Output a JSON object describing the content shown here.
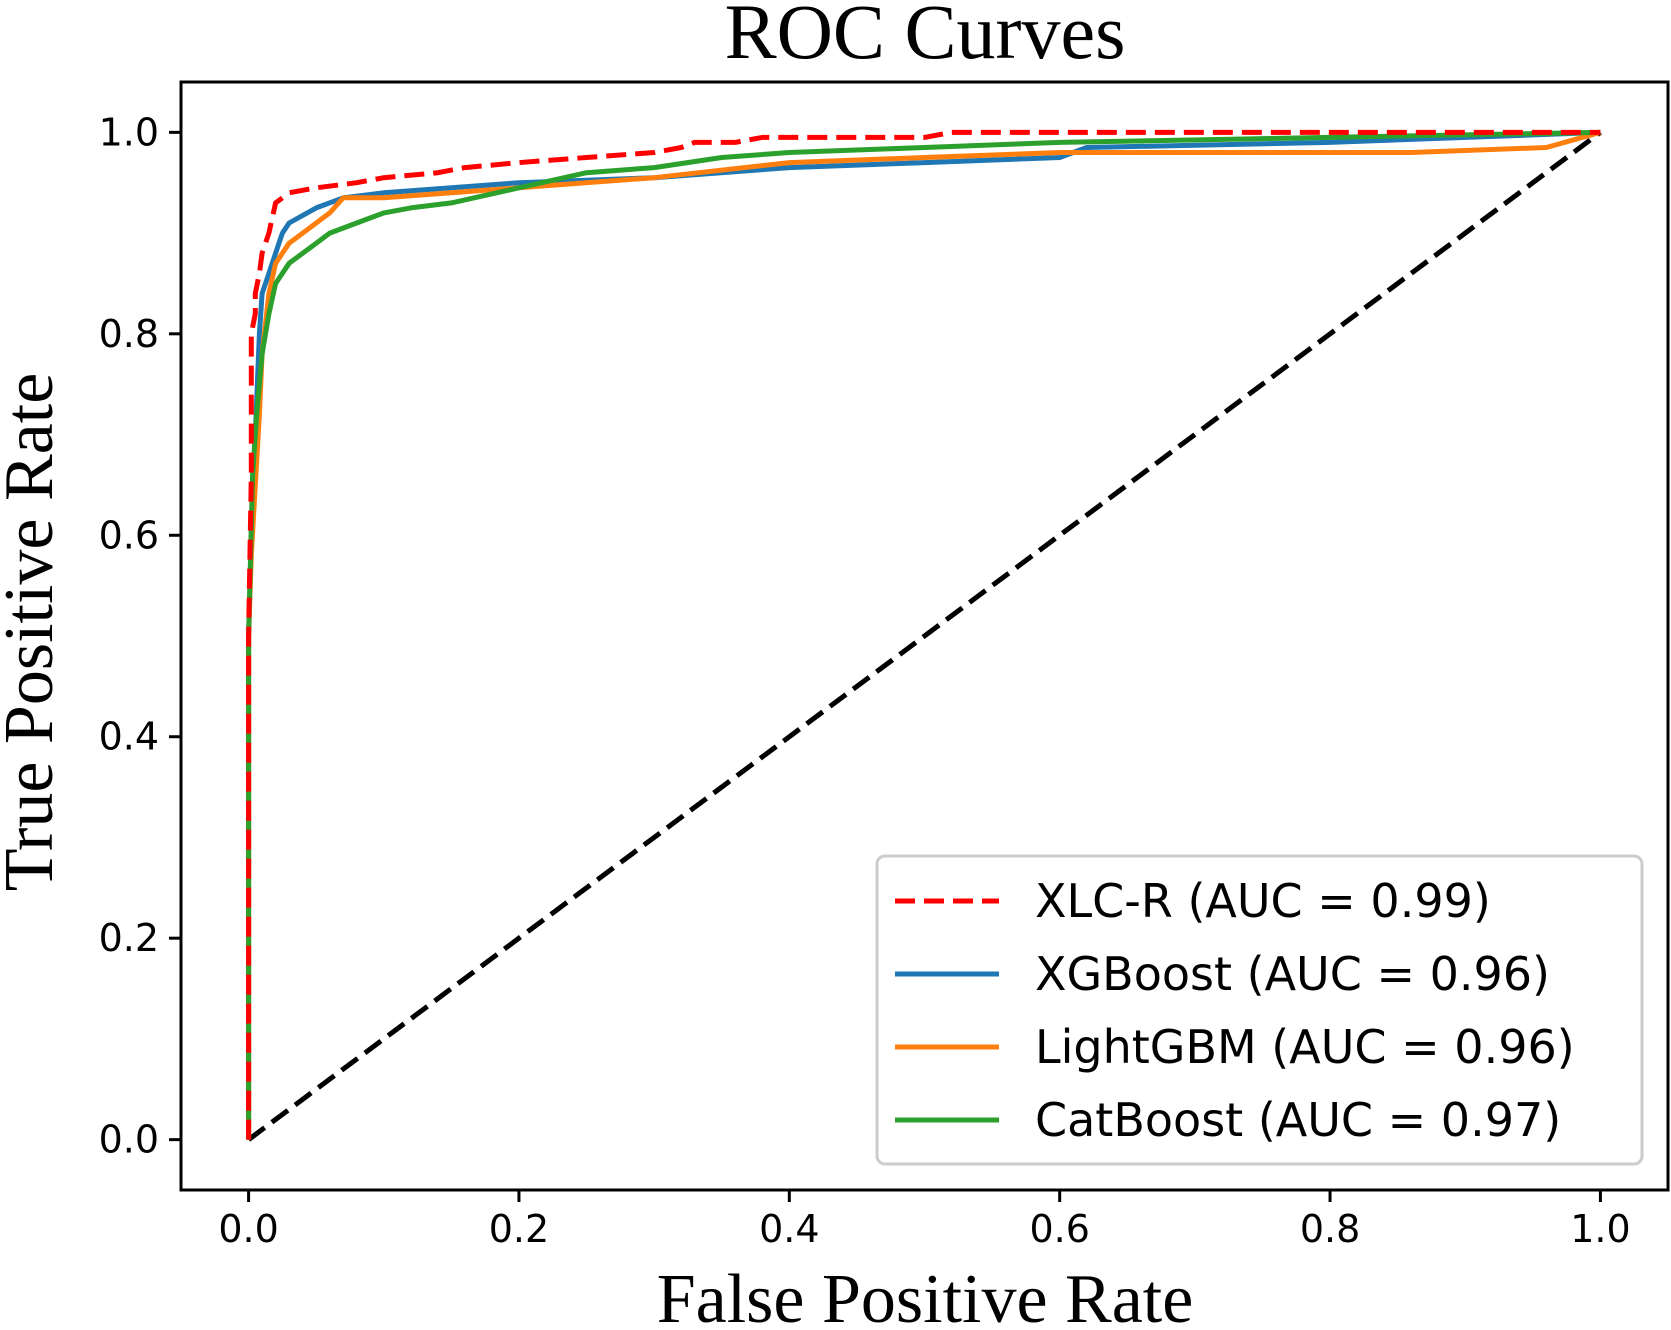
{
  "chart_data": {
    "type": "line",
    "title": "ROC Curves",
    "xlabel": "False Positive Rate",
    "ylabel": "True Positive Rate",
    "xlim": [
      -0.05,
      1.05
    ],
    "ylim": [
      -0.05,
      1.05
    ],
    "xticks": [
      "0.0",
      "0.2",
      "0.4",
      "0.6",
      "0.8",
      "1.0"
    ],
    "yticks": [
      "0.0",
      "0.2",
      "0.4",
      "0.6",
      "0.8",
      "1.0"
    ],
    "grid": false,
    "legend_position": "lower-right",
    "series": [
      {
        "name": "XLC-R (AUC = 0.99)",
        "color": "#ff0000",
        "dashed": true,
        "x": [
          0,
          0,
          0.002,
          0.002,
          0.005,
          0.005,
          0.008,
          0.01,
          0.015,
          0.02,
          0.025,
          0.03,
          0.05,
          0.08,
          0.1,
          0.14,
          0.16,
          0.2,
          0.25,
          0.3,
          0.32,
          0.33,
          0.36,
          0.38,
          0.5,
          0.52,
          0.75,
          1.0
        ],
        "y": [
          0,
          0.5,
          0.66,
          0.8,
          0.82,
          0.84,
          0.86,
          0.88,
          0.9,
          0.93,
          0.935,
          0.94,
          0.945,
          0.95,
          0.955,
          0.96,
          0.965,
          0.97,
          0.975,
          0.98,
          0.985,
          0.99,
          0.99,
          0.995,
          0.995,
          1.0,
          1.0,
          1.0
        ]
      },
      {
        "name": "XGBoost (AUC = 0.96)",
        "color": "#1f77b4",
        "dashed": false,
        "x": [
          0,
          0,
          0.002,
          0.005,
          0.008,
          0.01,
          0.015,
          0.02,
          0.025,
          0.03,
          0.05,
          0.07,
          0.1,
          0.15,
          0.2,
          0.3,
          0.4,
          0.5,
          0.6,
          0.62,
          0.8,
          1.0
        ],
        "y": [
          0,
          0.5,
          0.6,
          0.7,
          0.8,
          0.84,
          0.86,
          0.88,
          0.9,
          0.91,
          0.925,
          0.935,
          0.94,
          0.945,
          0.95,
          0.955,
          0.965,
          0.97,
          0.975,
          0.985,
          0.99,
          1.0
        ]
      },
      {
        "name": "LightGBM (AUC = 0.96)",
        "color": "#ff7f0e",
        "dashed": false,
        "x": [
          0,
          0,
          0.002,
          0.005,
          0.008,
          0.01,
          0.015,
          0.02,
          0.03,
          0.04,
          0.05,
          0.06,
          0.07,
          0.1,
          0.15,
          0.2,
          0.3,
          0.4,
          0.5,
          0.6,
          0.86,
          0.96,
          1.0
        ],
        "y": [
          0,
          0.5,
          0.58,
          0.65,
          0.72,
          0.78,
          0.84,
          0.87,
          0.89,
          0.9,
          0.91,
          0.92,
          0.935,
          0.935,
          0.94,
          0.945,
          0.955,
          0.97,
          0.975,
          0.98,
          0.98,
          0.985,
          1.0
        ]
      },
      {
        "name": "CatBoost (AUC = 0.97)",
        "color": "#2ca02c",
        "dashed": false,
        "x": [
          0,
          0,
          0.003,
          0.006,
          0.01,
          0.015,
          0.02,
          0.03,
          0.04,
          0.05,
          0.06,
          0.08,
          0.1,
          0.12,
          0.15,
          0.2,
          0.25,
          0.3,
          0.35,
          0.4,
          0.5,
          0.6,
          0.8,
          1.0
        ],
        "y": [
          0,
          0.5,
          0.66,
          0.72,
          0.78,
          0.82,
          0.85,
          0.87,
          0.88,
          0.89,
          0.9,
          0.91,
          0.92,
          0.925,
          0.93,
          0.945,
          0.96,
          0.965,
          0.975,
          0.98,
          0.985,
          0.99,
          0.995,
          1.0
        ]
      },
      {
        "name": "",
        "color": "#000000",
        "dashed": true,
        "x": [
          0,
          1
        ],
        "y": [
          0,
          1
        ]
      }
    ]
  }
}
